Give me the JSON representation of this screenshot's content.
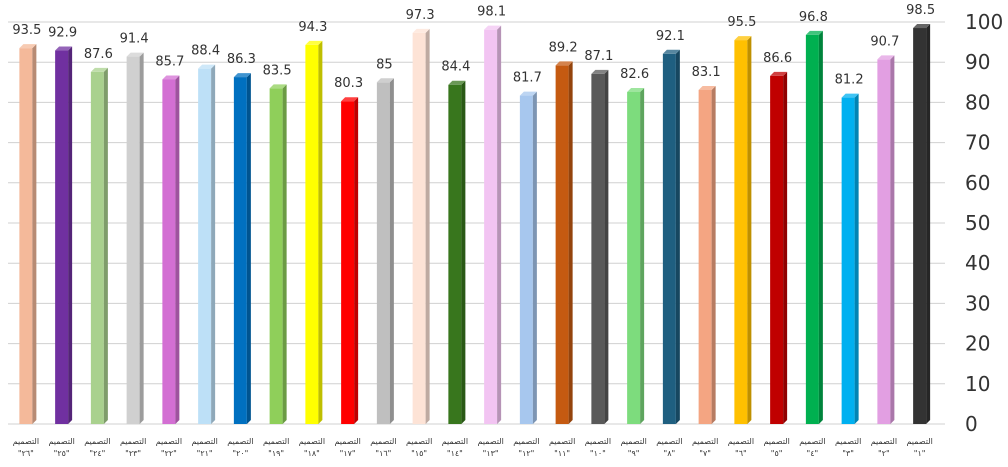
{
  "chart_data": {
    "type": "bar",
    "title": "",
    "xlabel": "",
    "ylabel": "",
    "ylim": [
      0,
      100
    ],
    "yticks": [
      0,
      10,
      20,
      30,
      40,
      50,
      60,
      70,
      80,
      90,
      100
    ],
    "grid": true,
    "y_axis_side": "right",
    "categories": [
      "التصميم \"٢٦\"",
      "التصميم \"٢٥\"",
      "التصميم \"٢٤\"",
      "التصميم \"٢٣\"",
      "التصميم \"٢٢\"",
      "التصميم \"٢١\"",
      "التصميم \"٢٠\"",
      "التصميم \"١٩\"",
      "التصميم \"١٨\"",
      "التصميم \"١٧\"",
      "التصميم \"١٦\"",
      "التصميم \"١٥\"",
      "التصميم \"١٤\"",
      "التصميم \"١٣\"",
      "التصميم \"١٢\"",
      "التصميم \"١١\"",
      "التصميم \"١٠\"",
      "التصميم \"٩\"",
      "التصميم \"٨\"",
      "التصميم \"٧\"",
      "التصميم \"٦\"",
      "التصميم \"٥\"",
      "التصميم \"٤\"",
      "التصميم \"٣\"",
      "التصميم \"٢\"",
      "التصميم \"١\""
    ],
    "values": [
      93.5,
      92.9,
      87.6,
      91.4,
      85.7,
      88.4,
      86.3,
      83.5,
      94.3,
      80.3,
      85,
      97.3,
      84.4,
      98.1,
      81.7,
      89.2,
      87.1,
      82.6,
      92.1,
      83.1,
      95.5,
      86.6,
      96.8,
      81.2,
      90.7,
      98.5
    ],
    "data_labels": [
      "93.5",
      "92.9",
      "87.6",
      "91.4",
      "85.7",
      "88.4",
      "86.3",
      "83.5",
      "94.3",
      "80.3",
      "85",
      "97.3",
      "84.4",
      "98.1",
      "81.7",
      "89.2",
      "87.1",
      "82.6",
      "92.1",
      "83.1",
      "95.5",
      "86.6",
      "96.8",
      "81.2",
      "90.7",
      "98.5"
    ],
    "colors": [
      "#f4b99a",
      "#7030a0",
      "#a9d18e",
      "#d0d0d0",
      "#d36fd3",
      "#bde0f7",
      "#0070c0",
      "#8fcf5a",
      "#ffff00",
      "#ff0000",
      "#bfbfbf",
      "#fde3d6",
      "#38761d",
      "#f2c4f2",
      "#a7c7ee",
      "#c55a11",
      "#595959",
      "#7ddc7d",
      "#1f5f80",
      "#f4a582",
      "#ffc000",
      "#c00000",
      "#00b050",
      "#00b0f0",
      "#e29fe2",
      "#333333"
    ]
  }
}
